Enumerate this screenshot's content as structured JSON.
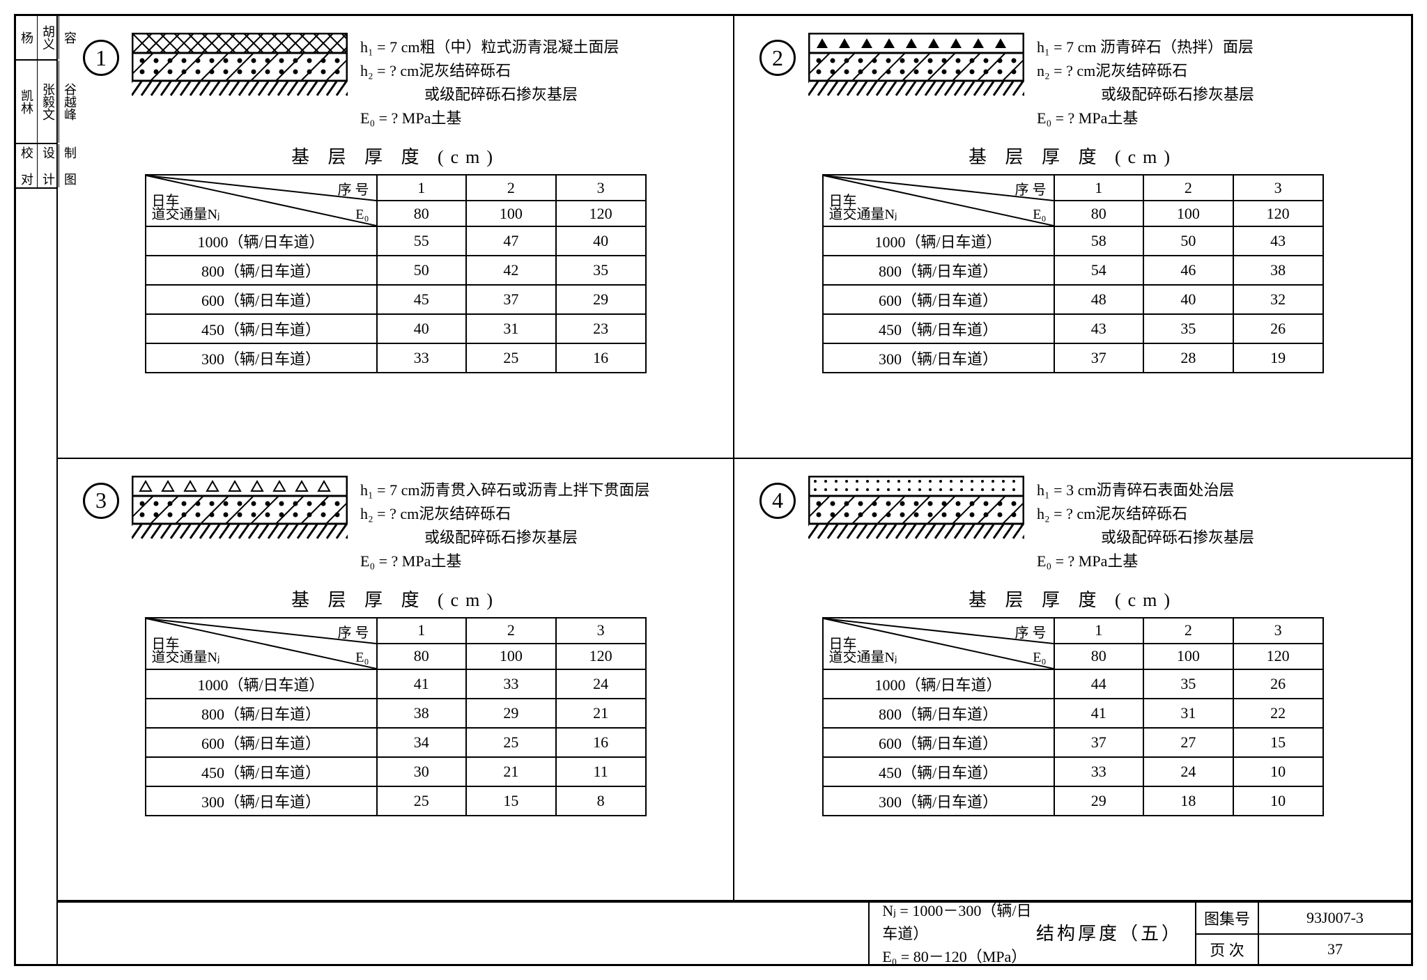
{
  "side_stamp": {
    "rows": [
      [
        "杨",
        "胡义",
        "容"
      ],
      [
        "凯林",
        "张毅文",
        "谷越峰"
      ],
      [
        "校 对",
        "设 计",
        "制 图"
      ]
    ]
  },
  "panels": [
    {
      "number": "1",
      "diagram_type": "crosshatch-gravel",
      "notes": {
        "h1": "h₁ =  7 cm粗（中）粒式沥青混凝土面层",
        "h2": "h₂ =  ? cm泥灰结碎砾石",
        "h2_alt": "或级配碎砾石掺灰基层",
        "e0": "E₀ =  ? MPa土基"
      },
      "table_title": "基 层 厚 度   (cm)",
      "header": {
        "seq": "序 号",
        "row_label_top": "日车",
        "row_label_bot": "道交通量Nⱼ",
        "e0": "E₀"
      },
      "cols": [
        "1",
        "2",
        "3"
      ],
      "e0_vals": [
        "80",
        "100",
        "120"
      ],
      "rows": [
        {
          "label": "1000（辆/日车道）",
          "vals": [
            "55",
            "47",
            "40"
          ]
        },
        {
          "label": "800（辆/日车道）",
          "vals": [
            "50",
            "42",
            "35"
          ]
        },
        {
          "label": "600（辆/日车道）",
          "vals": [
            "45",
            "37",
            "29"
          ]
        },
        {
          "label": "450（辆/日车道）",
          "vals": [
            "40",
            "31",
            "23"
          ]
        },
        {
          "label": "300（辆/日车道）",
          "vals": [
            "33",
            "25",
            "16"
          ]
        }
      ]
    },
    {
      "number": "2",
      "diagram_type": "triangles-gravel",
      "notes": {
        "h1": "h₁ =  7 cm 沥青碎石（热拌）面层",
        "h2": "n₂ =  ? cm泥灰结碎砾石",
        "h2_alt": "或级配碎砾石掺灰基层",
        "e0": "E₀ =  ? MPa土基"
      },
      "table_title": "基 层 厚 度   (cm)",
      "header": {
        "seq": "序 号",
        "row_label_top": "日车",
        "row_label_bot": "道交通量Nⱼ",
        "e0": "E₀"
      },
      "cols": [
        "1",
        "2",
        "3"
      ],
      "e0_vals": [
        "80",
        "100",
        "120"
      ],
      "rows": [
        {
          "label": "1000（辆/日车道）",
          "vals": [
            "58",
            "50",
            "43"
          ]
        },
        {
          "label": "800（辆/日车道）",
          "vals": [
            "54",
            "46",
            "38"
          ]
        },
        {
          "label": "600（辆/日车道）",
          "vals": [
            "48",
            "40",
            "32"
          ]
        },
        {
          "label": "450（辆/日车道）",
          "vals": [
            "43",
            "35",
            "26"
          ]
        },
        {
          "label": "300（辆/日车道）",
          "vals": [
            "37",
            "28",
            "19"
          ]
        }
      ]
    },
    {
      "number": "3",
      "diagram_type": "open-triangles-gravel",
      "notes": {
        "h1": "h₁ =  7 cm沥青贯入碎石或沥青上拌下贯面层",
        "h2": "h₂ =  ? cm泥灰结碎砾石",
        "h2_alt": "或级配碎砾石掺灰基层",
        "e0": "E₀ =  ? MPa土基"
      },
      "table_title": "基 层 厚 度   (cm)",
      "header": {
        "seq": "序 号",
        "row_label_top": "日车",
        "row_label_bot": "道交通量Nⱼ",
        "e0": "E₀"
      },
      "cols": [
        "1",
        "2",
        "3"
      ],
      "e0_vals": [
        "80",
        "100",
        "120"
      ],
      "rows": [
        {
          "label": "1000（辆/日车道）",
          "vals": [
            "41",
            "33",
            "24"
          ]
        },
        {
          "label": "800（辆/日车道）",
          "vals": [
            "38",
            "29",
            "21"
          ]
        },
        {
          "label": "600（辆/日车道）",
          "vals": [
            "34",
            "25",
            "16"
          ]
        },
        {
          "label": "450（辆/日车道）",
          "vals": [
            "30",
            "21",
            "11"
          ]
        },
        {
          "label": "300（辆/日车道）",
          "vals": [
            "25",
            "15",
            "8"
          ]
        }
      ]
    },
    {
      "number": "4",
      "diagram_type": "dots-gravel",
      "notes": {
        "h1": "h₁ =  3 cm沥青碎石表面处治层",
        "h2": "h₂ =  ? cm泥灰结碎砾石",
        "h2_alt": "或级配碎砾石掺灰基层",
        "e0": "E₀ =  ? MPa土基"
      },
      "table_title": "基 层 厚 度   (cm)",
      "header": {
        "seq": "序 号",
        "row_label_top": "日车",
        "row_label_bot": "道交通量Nⱼ",
        "e0": "E₀"
      },
      "cols": [
        "1",
        "2",
        "3"
      ],
      "e0_vals": [
        "80",
        "100",
        "120"
      ],
      "rows": [
        {
          "label": "1000（辆/日车道）",
          "vals": [
            "44",
            "35",
            "26"
          ]
        },
        {
          "label": "800（辆/日车道）",
          "vals": [
            "41",
            "31",
            "22"
          ]
        },
        {
          "label": "600（辆/日车道）",
          "vals": [
            "37",
            "27",
            "15"
          ]
        },
        {
          "label": "450（辆/日车道）",
          "vals": [
            "33",
            "24",
            "10"
          ]
        },
        {
          "label": "300（辆/日车道）",
          "vals": [
            "29",
            "18",
            "10"
          ]
        }
      ]
    }
  ],
  "footer": {
    "mid_line1": "Nⱼ = 1000－300（辆/日车道）",
    "mid_line2": "E₀ =    80－120（MPa）",
    "mid_title": "结构厚度（五）",
    "set_label": "图集号",
    "set_value": "93J007-3",
    "page_label": "页  次",
    "page_value": "37"
  },
  "colors": {
    "stroke": "#000000",
    "bg": "#ffffff"
  }
}
